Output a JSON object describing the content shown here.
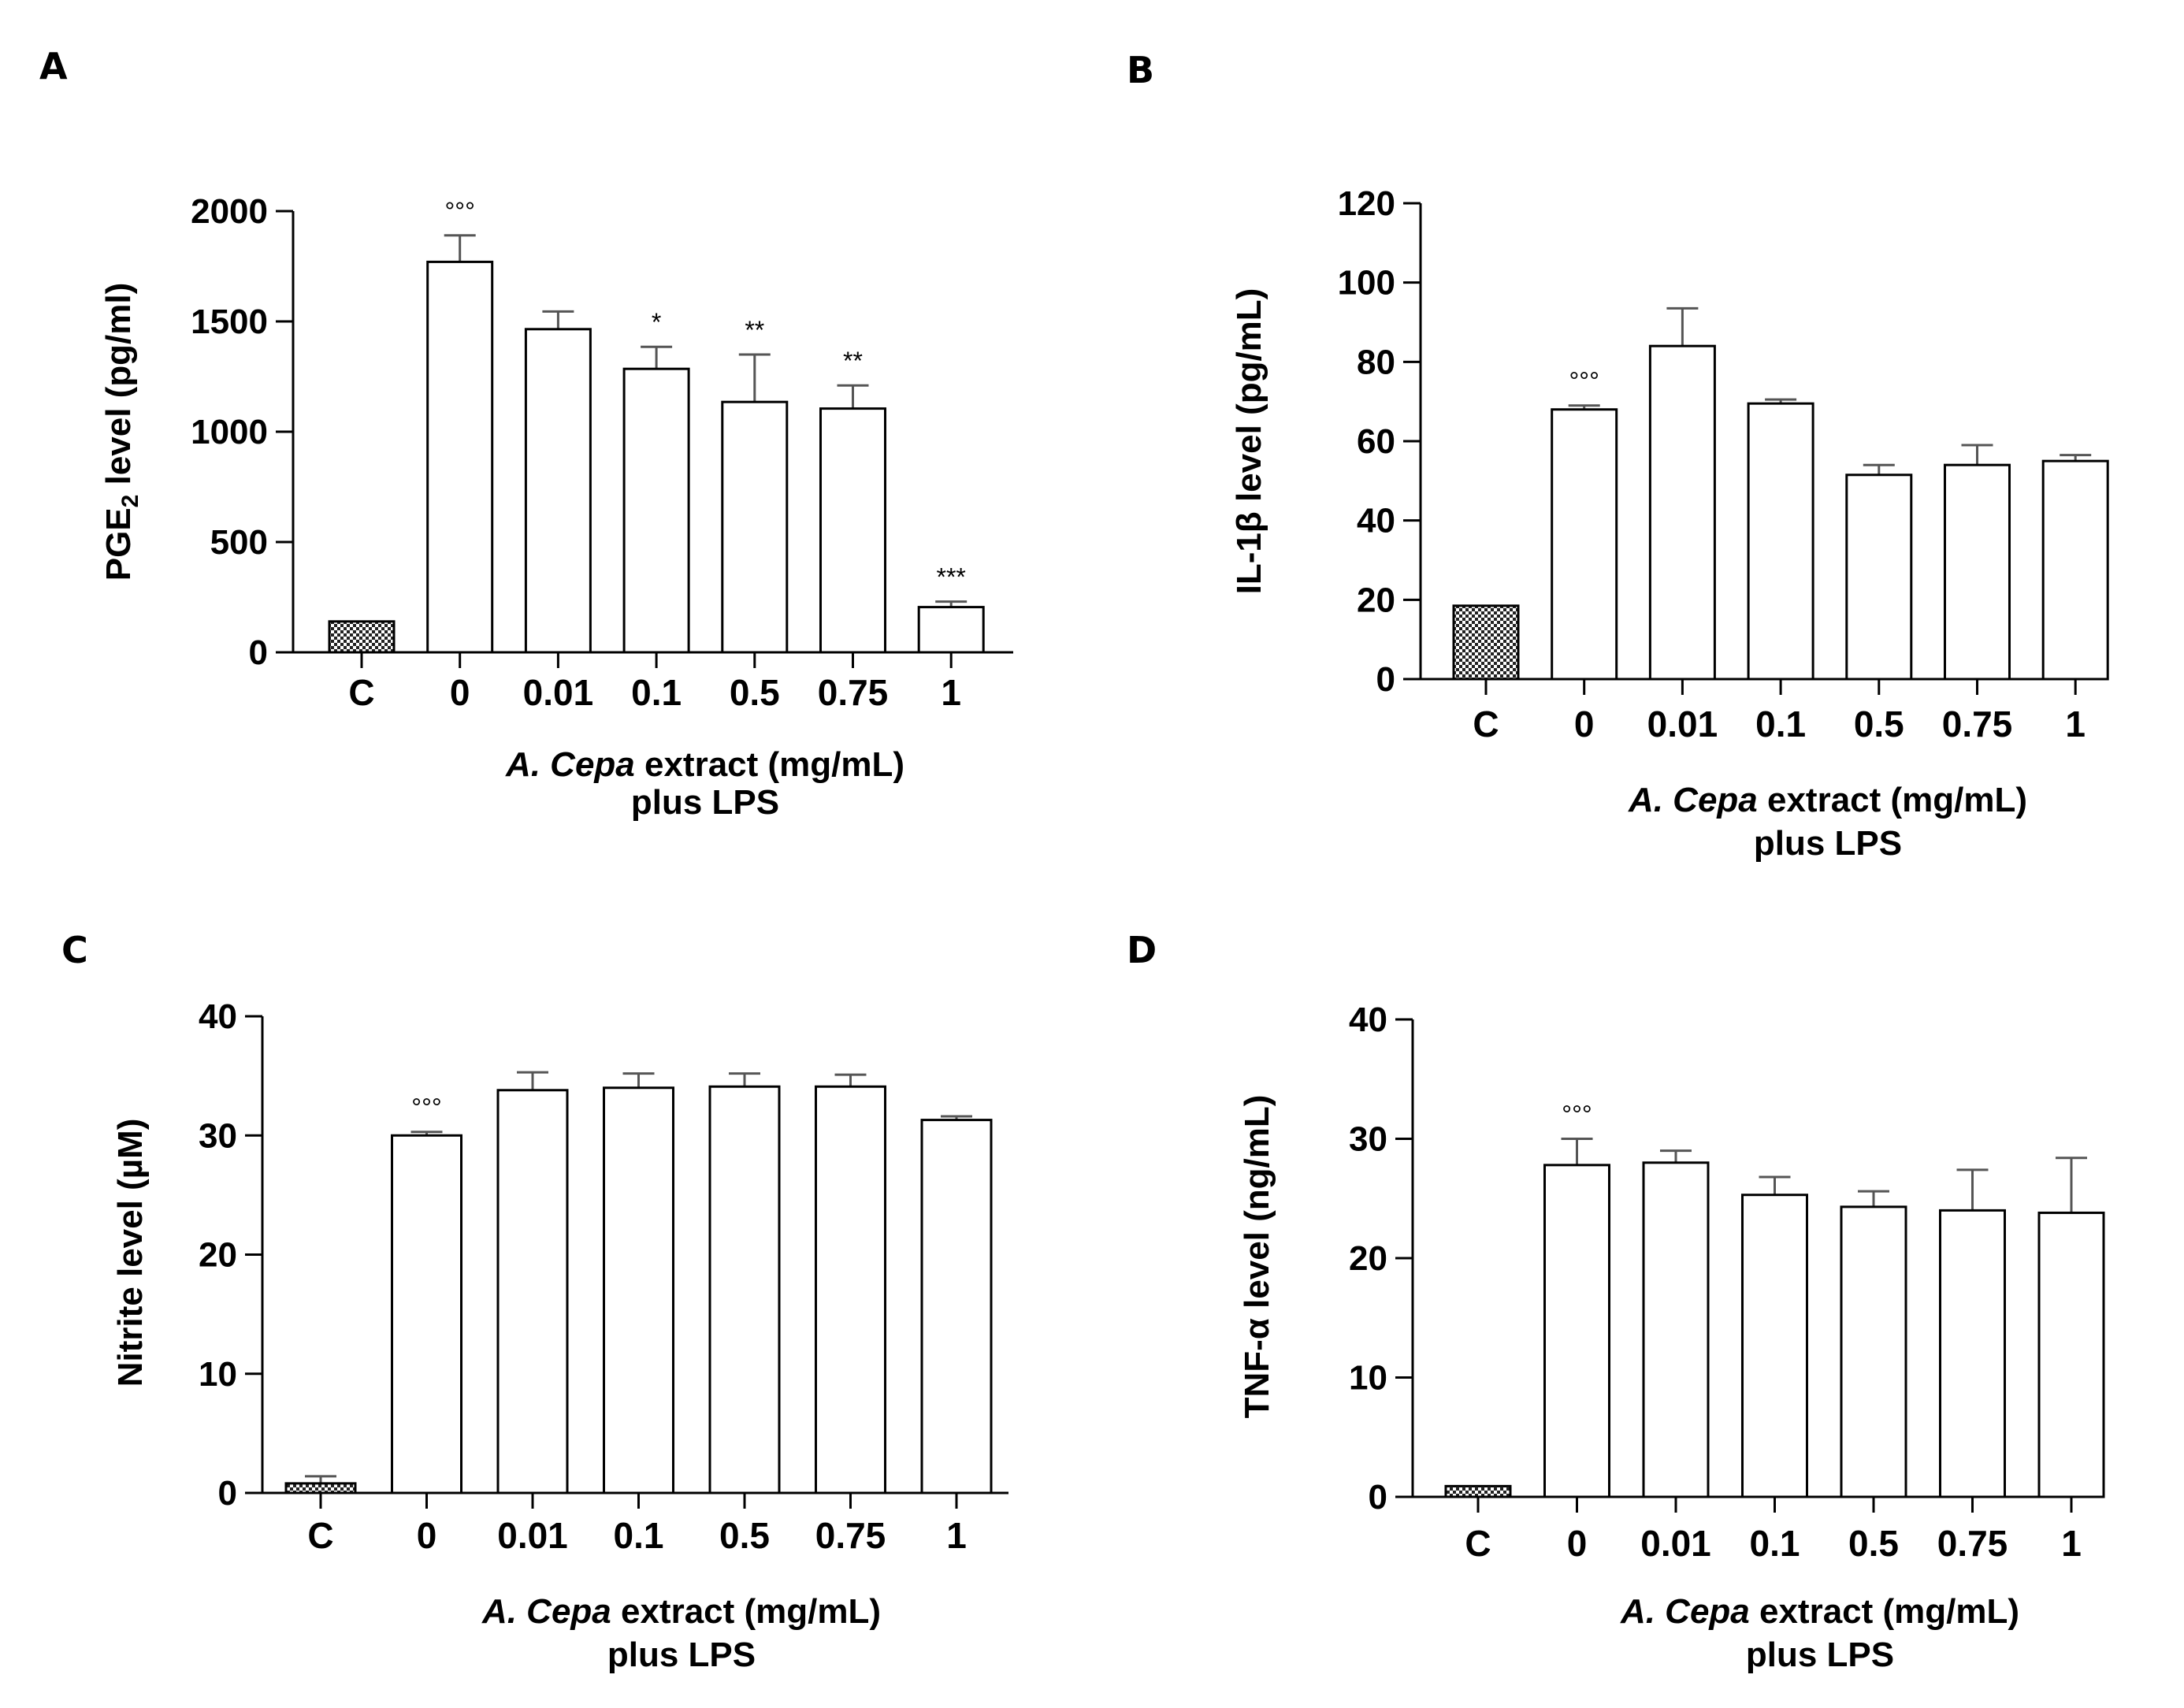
{
  "chart_data": [
    {
      "type": "bar",
      "panel": "A",
      "ylabel_main": "PGE",
      "ylabel_sub": "2",
      "ylabel_rest": " level (pg/ml)",
      "xlabel_italic": "A. Cepa",
      "xlabel_rest": " extract (mg/mL)",
      "xlabel_line2": "plus LPS",
      "categories": [
        "C",
        "0",
        "0.01",
        "0.1",
        "0.5",
        "0.75",
        "1"
      ],
      "values": [
        140,
        1770,
        1465,
        1285,
        1135,
        1105,
        205
      ],
      "errors": [
        0,
        120,
        80,
        100,
        215,
        105,
        25
      ],
      "annotations": [
        "",
        "°°°",
        "",
        "*",
        "**",
        "**",
        "***"
      ],
      "ylim": [
        0,
        2000
      ],
      "yticks": [
        0,
        500,
        1000,
        1500,
        2000
      ],
      "ytick_labels": [
        "0",
        "500",
        "1000",
        "1500",
        "2000"
      ]
    },
    {
      "type": "bar",
      "panel": "B",
      "ylabel": "IL-1β level (pg/mL)",
      "xlabel_italic": "A. Cepa",
      "xlabel_rest": " extract (mg/mL)",
      "xlabel_line2": "plus LPS",
      "categories": [
        "C",
        "0",
        "0.01",
        "0.1",
        "0.5",
        "0.75",
        "1"
      ],
      "values": [
        18.5,
        68,
        84,
        69.5,
        51.5,
        54,
        55
      ],
      "errors": [
        0,
        1,
        9.5,
        1,
        2.5,
        5,
        1.5
      ],
      "annotations": [
        "",
        "°°°",
        "",
        "",
        "",
        "",
        ""
      ],
      "ylim": [
        0,
        120
      ],
      "yticks": [
        0,
        20,
        40,
        60,
        80,
        100,
        120
      ],
      "ytick_labels": [
        "0",
        "20",
        "40",
        "60",
        "80",
        "100",
        "120"
      ]
    },
    {
      "type": "bar",
      "panel": "C",
      "ylabel": "Nitrite level (µM)",
      "xlabel_italic": "A. Cepa",
      "xlabel_rest": " extract (mg/mL)",
      "xlabel_line2": "plus LPS",
      "categories": [
        "C",
        "0",
        "0.01",
        "0.1",
        "0.5",
        "0.75",
        "1"
      ],
      "values": [
        0.8,
        30,
        33.8,
        34,
        34.1,
        34.1,
        31.3
      ],
      "errors": [
        0.6,
        0.3,
        1.5,
        1.2,
        1.1,
        1.0,
        0.3
      ],
      "annotations": [
        "",
        "°°°",
        "",
        "",
        "",
        "",
        ""
      ],
      "ylim": [
        0,
        40
      ],
      "yticks": [
        0,
        10,
        20,
        30,
        40
      ],
      "ytick_labels": [
        "0",
        "10",
        "20",
        "30",
        "40"
      ]
    },
    {
      "type": "bar",
      "panel": "D",
      "ylabel": "TNF-α  level (ng/mL)",
      "xlabel_italic": "A. Cepa",
      "xlabel_rest": " extract (mg/mL)",
      "xlabel_line2": "plus LPS",
      "categories": [
        "C",
        "0",
        "0.01",
        "0.1",
        "0.5",
        "0.75",
        "1"
      ],
      "values": [
        0.9,
        27.8,
        28,
        25.3,
        24.3,
        24,
        23.8
      ],
      "errors": [
        0,
        2.2,
        1.0,
        1.5,
        1.3,
        3.4,
        4.6
      ],
      "annotations": [
        "",
        "°°°",
        "",
        "",
        "",
        "",
        ""
      ],
      "ylim": [
        0,
        40
      ],
      "yticks": [
        0,
        10,
        20,
        30,
        40
      ],
      "ytick_labels": [
        "0",
        "10",
        "20",
        "30",
        "40"
      ]
    }
  ]
}
